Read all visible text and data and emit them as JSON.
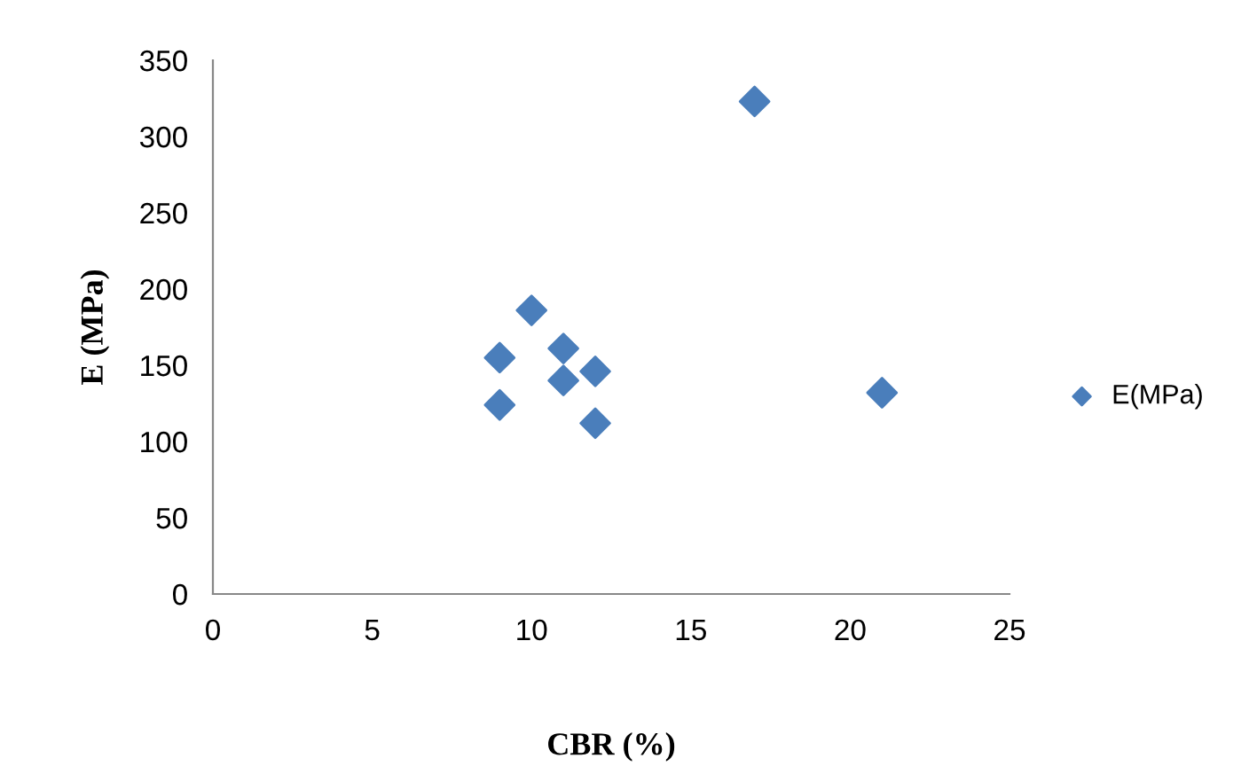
{
  "chart_data": {
    "type": "scatter",
    "xlabel": "CBR (%)",
    "ylabel": "E (MPa)",
    "x": [
      17,
      10,
      9,
      11,
      11,
      12,
      9,
      12,
      21
    ],
    "series": [
      {
        "name": "E(MPa)",
        "color": "#4a7ebb",
        "values": [
          323,
          186,
          155,
          161,
          140,
          146,
          124,
          112,
          132
        ]
      }
    ],
    "xlim": [
      0,
      25
    ],
    "xticks": [
      0,
      5,
      10,
      15,
      20,
      25
    ],
    "ylim": [
      0,
      350
    ],
    "yticks": [
      0,
      50,
      100,
      150,
      200,
      250,
      300,
      350
    ],
    "marker": "diamond",
    "legend": "right",
    "grid": false
  }
}
